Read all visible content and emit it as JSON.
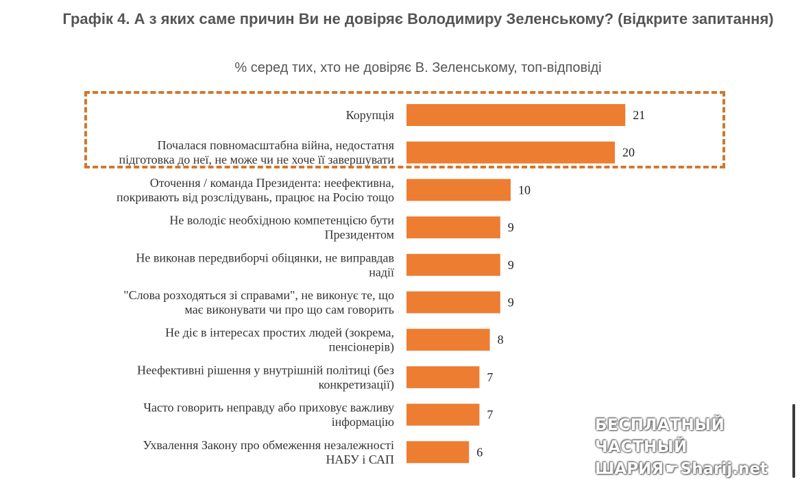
{
  "chart_data": {
    "type": "bar",
    "orientation": "horizontal",
    "title": "Графік 4. А з яких саме причин Ви не довіряє Володимиру Зеленському? (відкрите запитання)",
    "subtitle": "% серед тих, хто не довіряє В. Зеленському, топ-відповіді",
    "categories": [
      [
        "Корупція"
      ],
      [
        "Почалася повномасштабна війна, недостатня",
        "підготовка до неї, не може чи не хоче її завершувати"
      ],
      [
        "Оточення / команда Президента: неефективна,",
        "покривають від розслідувань, працює на Росію тощо"
      ],
      [
        "Не володіє необхідною компетенцією бути",
        "Президентом"
      ],
      [
        "Не виконав передвиборчі обіцянки, не виправдав",
        "надії"
      ],
      [
        "\"Слова розходяться зі справами\", не виконує те, що",
        "має виконувати чи про що сам говорить"
      ],
      [
        "Не діє в інтересах простих людей (зокрема,",
        "пенсіонерів)"
      ],
      [
        "Неефективні рішення у внутрішній політиці (без",
        "конкретизації)"
      ],
      [
        "Часто говорить неправду або приховує важливу",
        "інформацію"
      ],
      [
        "Ухвалення Закону про обмеження незалежності",
        "НАБУ і САП"
      ]
    ],
    "values": [
      21,
      20,
      10,
      9,
      9,
      9,
      8,
      7,
      7,
      6
    ],
    "highlighted_categories": [
      0,
      1
    ],
    "bar_color": "#ed7d31",
    "highlight_color": "#d2772d",
    "grid": false,
    "legend": "none"
  },
  "watermark": {
    "line1": "БЕСПЛАТНЫЙ ЧАСТНЫЙ",
    "line2_left": "ШАРИЯ",
    "line2_right": "Sharij.net",
    "icon": "pointing-hand-icon"
  }
}
